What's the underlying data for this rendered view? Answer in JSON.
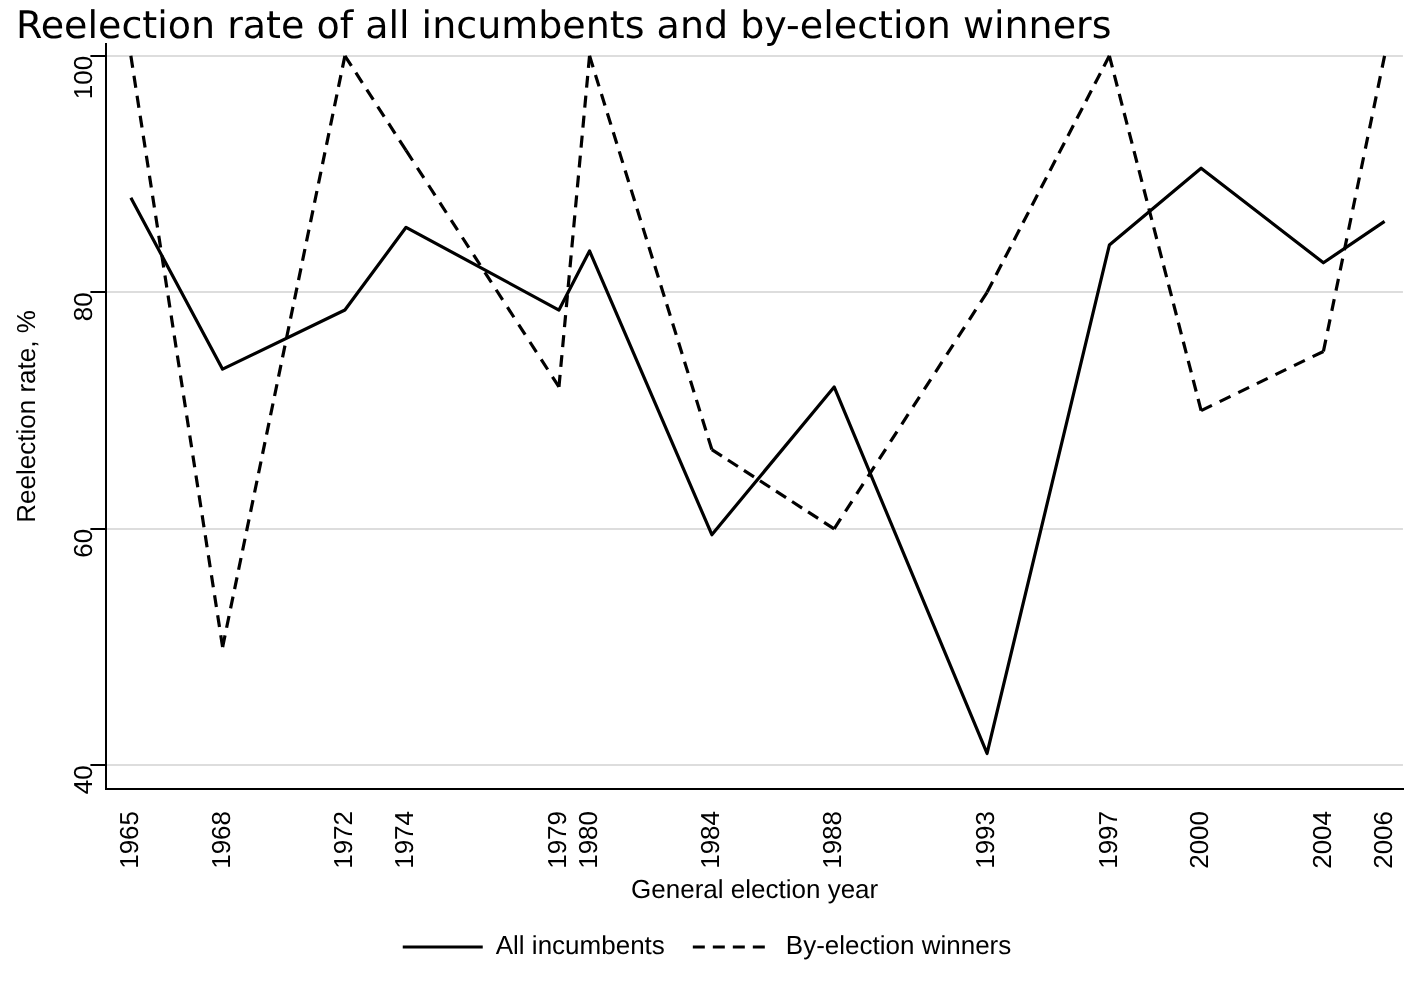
{
  "chart_data": {
    "type": "line",
    "title": "Reelection rate of all incumbents and by-election winners",
    "xlabel": "General election year",
    "ylabel": "Reelection rate, %",
    "x": [
      1965,
      1968,
      1972,
      1974,
      1979,
      1980,
      1984,
      1988,
      1993,
      1997,
      2000,
      2004,
      2006
    ],
    "series": [
      {
        "name": "All incumbents",
        "color": "#000000",
        "line_style": "solid",
        "values": [
          88,
          73.5,
          78.5,
          85.5,
          78.5,
          83.5,
          59.5,
          72,
          41,
          84,
          90.5,
          82.5,
          86
        ]
      },
      {
        "name": "By-election winners",
        "color": "#000000",
        "line_style": "dashed",
        "values": [
          100,
          50,
          100,
          92,
          72,
          100,
          66.7,
          60,
          80,
          100,
          70,
          75,
          100
        ]
      }
    ],
    "xlim": [
      1964.2,
      2006.6
    ],
    "xticks": [
      1965,
      1968,
      1972,
      1974,
      1979,
      1980,
      1984,
      1988,
      1993,
      1997,
      2000,
      2004,
      2006
    ],
    "ylim": [
      38,
      101
    ],
    "yticks": [
      40,
      60,
      80,
      100
    ],
    "grid": "y",
    "legend": "bottom",
    "marker": "none"
  }
}
